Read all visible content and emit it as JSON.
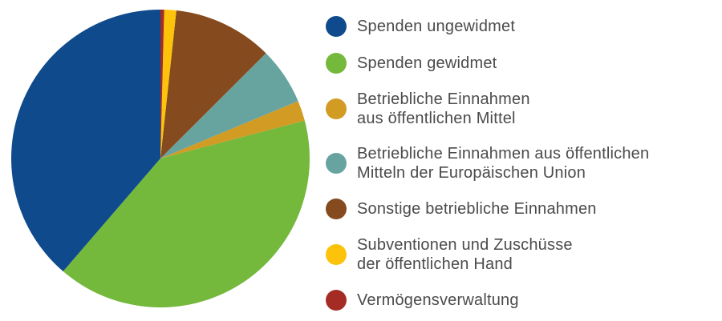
{
  "chart_data": {
    "type": "pie",
    "title": "",
    "legend_position": "right",
    "start_angle_deg": 0,
    "direction": "counterclockwise",
    "slices": [
      {
        "label": "Spenden ungewidmet",
        "value": 38.7,
        "color": "#0f4b8c"
      },
      {
        "label": "Spenden gewidmet",
        "value": 40.4,
        "color": "#74b83c"
      },
      {
        "label": "Betriebliche Einnahmen\naus öffentlichen Mittel",
        "value": 2.2,
        "color": "#d29b23"
      },
      {
        "label": "Betriebliche Einnahmen aus öffentlichen\nMitteln der Europäischen Union",
        "value": 6.2,
        "color": "#68a49f"
      },
      {
        "label": "Sonstige betriebliche Einnahmen",
        "value": 10.8,
        "color": "#854a1d"
      },
      {
        "label": "Subventionen und Zuschüsse\nder öffentlichen Hand",
        "value": 1.3,
        "color": "#fdc30b"
      },
      {
        "label": "Vermögensverwaltung",
        "value": 0.4,
        "color": "#a52c25"
      }
    ]
  },
  "legend": {
    "text_color": "#4b4b4b"
  }
}
